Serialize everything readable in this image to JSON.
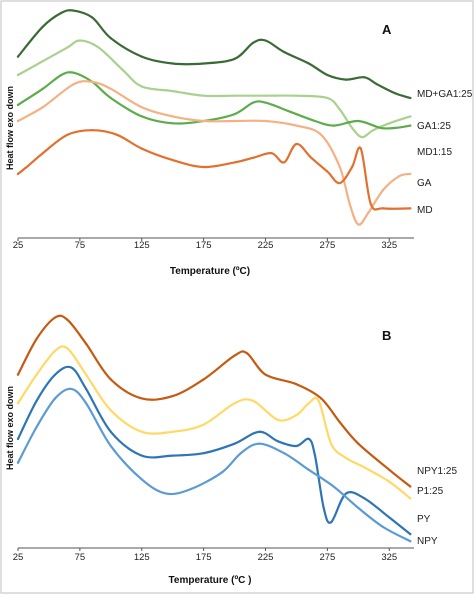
{
  "chart_data": [
    {
      "panel": "A",
      "type": "line",
      "xlabel": "Temperature (ºC)",
      "ylabel": "Heat flow exo down",
      "xlim": [
        25,
        345
      ],
      "xticks": [
        25,
        75,
        125,
        175,
        225,
        275,
        325
      ],
      "ylim": [
        0,
        100
      ],
      "series": [
        {
          "name": "MD+GA1:25",
          "color": "#3a6b35",
          "x": [
            25,
            45,
            60,
            70,
            85,
            100,
            125,
            150,
            175,
            200,
            215,
            225,
            240,
            260,
            275,
            290,
            305,
            315,
            330,
            342
          ],
          "y": [
            78,
            91,
            97,
            98,
            95,
            86,
            78,
            75,
            75,
            77,
            84,
            85,
            80,
            75,
            70,
            68,
            69,
            66,
            62,
            60
          ]
        },
        {
          "name": "GA1:25",
          "color": "#a9d18e",
          "x": [
            25,
            45,
            65,
            75,
            90,
            110,
            125,
            150,
            175,
            200,
            225,
            250,
            275,
            285,
            295,
            303,
            312,
            325,
            342
          ],
          "y": [
            70,
            76,
            82,
            85,
            82,
            72,
            65,
            63,
            61,
            61,
            61,
            61,
            60,
            55,
            47,
            43,
            46,
            49,
            52
          ]
        },
        {
          "name": "MD1:15",
          "color": "#5cad4a",
          "x": [
            25,
            45,
            60,
            70,
            85,
            100,
            125,
            150,
            175,
            200,
            215,
            225,
            245,
            265,
            280,
            300,
            318,
            330,
            342
          ],
          "y": [
            57,
            64,
            70,
            71,
            67,
            60,
            52,
            49,
            50,
            53,
            58,
            58,
            54,
            50,
            48,
            50,
            47,
            47,
            48
          ]
        },
        {
          "name": "GA",
          "color": "#f4b183",
          "x": [
            25,
            45,
            70,
            85,
            100,
            125,
            150,
            175,
            200,
            225,
            250,
            270,
            285,
            293,
            300,
            308,
            320,
            333,
            342
          ],
          "y": [
            50,
            56,
            66,
            67,
            64,
            56,
            52,
            50,
            50,
            50,
            48,
            44,
            30,
            14,
            5,
            10,
            20,
            26,
            27
          ]
        },
        {
          "name": "MD",
          "color": "#e2702f",
          "x": [
            25,
            32,
            45,
            65,
            85,
            105,
            125,
            150,
            175,
            200,
            215,
            230,
            240,
            250,
            262,
            275,
            285,
            295,
            302,
            310,
            320,
            342
          ],
          "y": [
            27,
            30,
            36,
            44,
            46,
            44,
            38,
            33,
            30,
            32,
            34,
            36,
            32,
            40,
            34,
            28,
            23,
            30,
            38,
            14,
            12,
            12
          ]
        }
      ]
    },
    {
      "panel": "B",
      "type": "line",
      "xlabel": "Temperature (ºC )",
      "ylabel": "Heat flow exo down",
      "xlim": [
        25,
        345
      ],
      "xticks": [
        25,
        75,
        125,
        175,
        225,
        275,
        325
      ],
      "ylim": [
        0,
        100
      ],
      "series": [
        {
          "name": "NPY1:25",
          "color": "#c55a11",
          "x": [
            25,
            40,
            55,
            65,
            80,
            100,
            125,
            150,
            175,
            200,
            210,
            225,
            250,
            270,
            285,
            300,
            325,
            342
          ],
          "y": [
            72,
            87,
            96,
            95,
            85,
            70,
            62,
            63,
            70,
            80,
            81,
            72,
            68,
            62,
            52,
            43,
            32,
            25
          ]
        },
        {
          "name": "P1:25",
          "color": "#ffd966",
          "x": [
            25,
            40,
            55,
            65,
            80,
            100,
            125,
            150,
            175,
            200,
            215,
            235,
            250,
            260,
            268,
            278,
            290,
            305,
            325,
            342
          ],
          "y": [
            60,
            72,
            82,
            83,
            72,
            57,
            48,
            48,
            51,
            60,
            61,
            53,
            55,
            60,
            61,
            43,
            37,
            33,
            27,
            20
          ]
        },
        {
          "name": "PY",
          "color": "#2e75b6",
          "x": [
            25,
            40,
            55,
            68,
            80,
            100,
            125,
            150,
            175,
            200,
            220,
            235,
            250,
            260,
            265,
            272,
            278,
            290,
            305,
            325,
            342
          ],
          "y": [
            45,
            61,
            72,
            75,
            66,
            48,
            38,
            38,
            39,
            43,
            48,
            44,
            42,
            45,
            38,
            16,
            10,
            22,
            20,
            12,
            5
          ]
        },
        {
          "name": "NPY",
          "color": "#5b9bd5",
          "x": [
            25,
            40,
            55,
            68,
            80,
            100,
            125,
            145,
            165,
            190,
            205,
            220,
            240,
            260,
            280,
            300,
            320,
            342
          ],
          "y": [
            35,
            50,
            62,
            66,
            60,
            42,
            28,
            22,
            24,
            31,
            39,
            43,
            39,
            32,
            25,
            16,
            8,
            2
          ]
        }
      ]
    }
  ],
  "labels": {
    "panel_a": "A",
    "panel_b": "B"
  }
}
